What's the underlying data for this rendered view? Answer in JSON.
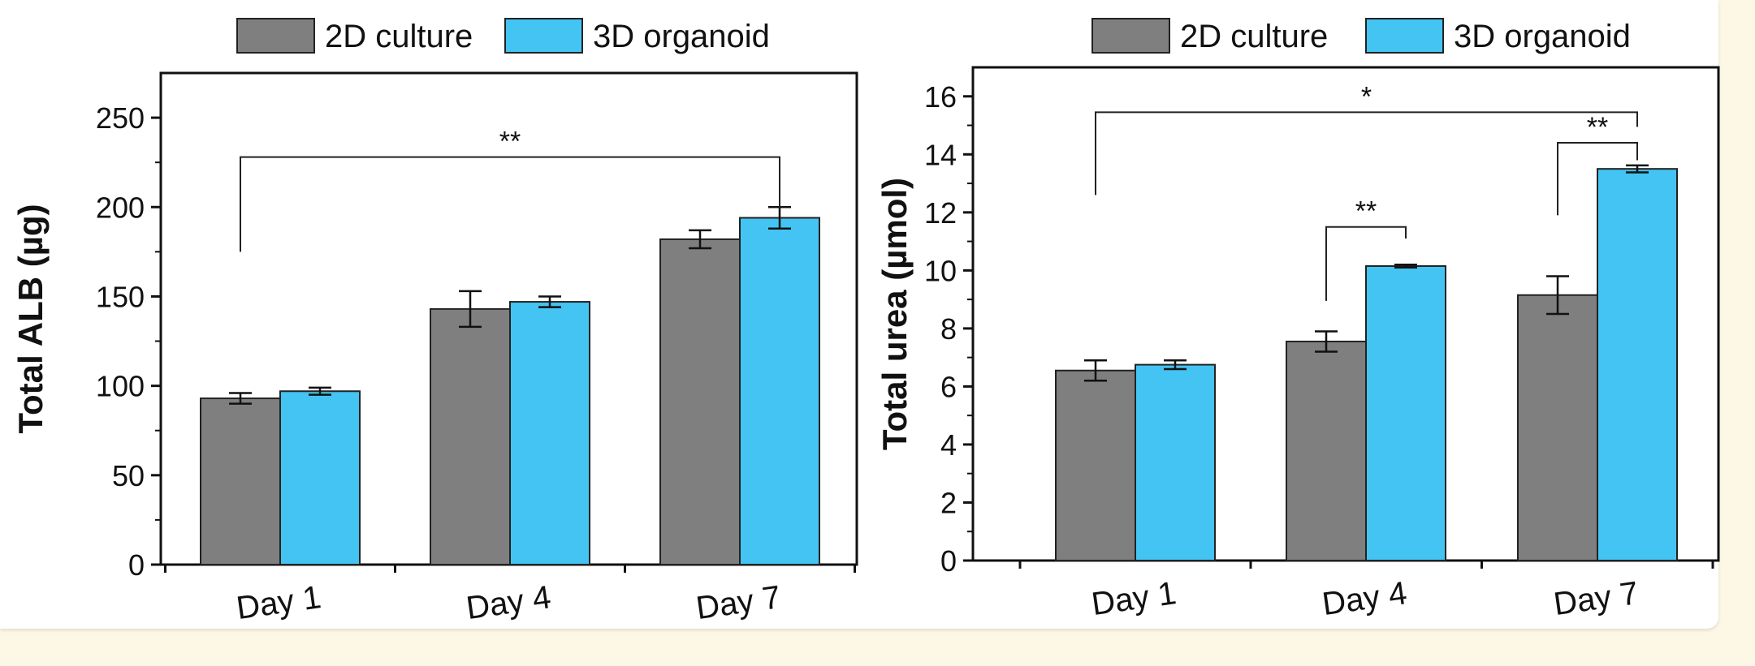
{
  "colors": {
    "series_2d": "#7f7f7f",
    "series_3d": "#43c4f3",
    "axis": "#111111",
    "page_bg": "#fdf8e6",
    "card_bg": "#ffffff"
  },
  "chart_data": [
    {
      "type": "bar",
      "title": "",
      "xlabel": "",
      "ylabel": "Total ALB (µg)",
      "categories": [
        "Day 1",
        "Day 4",
        "Day 7"
      ],
      "series": [
        {
          "name": "2D culture",
          "color": "#7f7f7f",
          "values": [
            93,
            143,
            182
          ],
          "errors": [
            3,
            10,
            5
          ]
        },
        {
          "name": "3D organoid",
          "color": "#43c4f3",
          "values": [
            97,
            147,
            194
          ],
          "errors": [
            2,
            3,
            6
          ]
        }
      ],
      "ylim": [
        0,
        275
      ],
      "yticks": [
        "0",
        "50",
        "100",
        "150",
        "200",
        "250"
      ],
      "legend": "top",
      "grid": false,
      "annotations": [
        {
          "label": "**",
          "from": [
            "Day 1",
            "2D culture"
          ],
          "to": [
            "Day 7",
            "3D organoid"
          ],
          "y": 228,
          "from_drop": 175,
          "to_drop": 200
        }
      ]
    },
    {
      "type": "bar",
      "title": "",
      "xlabel": "",
      "ylabel": "Total urea (µmol)",
      "categories": [
        "Day 1",
        "Day 4",
        "Day 7"
      ],
      "series": [
        {
          "name": "2D culture",
          "color": "#7f7f7f",
          "values": [
            6.55,
            7.55,
            9.15
          ],
          "errors": [
            0.35,
            0.35,
            0.65
          ]
        },
        {
          "name": "3D organoid",
          "color": "#43c4f3",
          "values": [
            6.75,
            10.15,
            13.5
          ],
          "errors": [
            0.15,
            0.05,
            0.12
          ]
        }
      ],
      "ylim": [
        0,
        17
      ],
      "yticks": [
        "0",
        "2",
        "4",
        "6",
        "8",
        "10",
        "12",
        "14",
        "16"
      ],
      "legend": "top",
      "grid": false,
      "annotations": [
        {
          "label": "*",
          "from": [
            "Day 1",
            "2D culture"
          ],
          "to": [
            "Day 7",
            "3D organoid"
          ],
          "y": 15.45,
          "from_drop": 12.6,
          "to_drop": 14.95
        },
        {
          "label": "**",
          "from": [
            "Day 4",
            "2D culture"
          ],
          "to": [
            "Day 4",
            "3D organoid"
          ],
          "y": 11.5,
          "from_drop": 8.95,
          "to_drop": 11.1
        },
        {
          "label": "**",
          "from": [
            "Day 7",
            "2D culture"
          ],
          "to": [
            "Day 7",
            "3D organoid"
          ],
          "y": 14.4,
          "from_drop": 11.9,
          "to_drop": 13.8
        }
      ]
    }
  ]
}
